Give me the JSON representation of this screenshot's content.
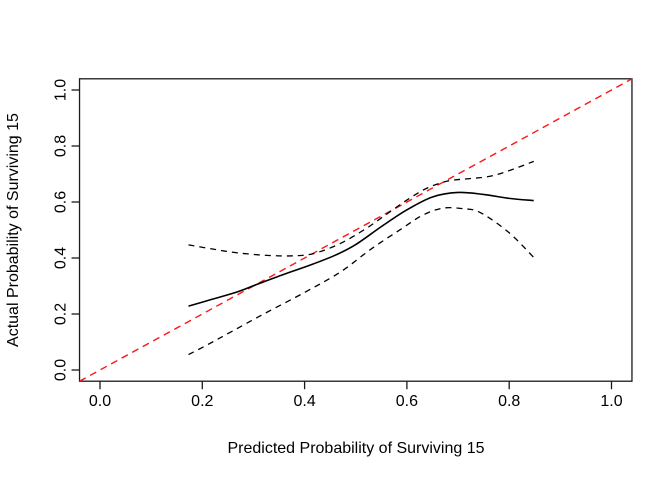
{
  "figure": {
    "background": "#ffffff",
    "text_color": "#000000",
    "frame_color": "#1a1a1a"
  },
  "chart_data": {
    "type": "line",
    "title": "",
    "xlabel": "Predicted Probability of Surviving 15",
    "ylabel": "Actual Probability of Surviving 15",
    "xlim": [
      -0.04,
      1.04
    ],
    "ylim": [
      -0.04,
      1.04
    ],
    "grid": false,
    "legend": "none",
    "xticks": {
      "values": [
        0,
        0.2,
        0.4,
        0.6,
        0.8,
        1.0
      ],
      "labels": [
        "0.0",
        "0.2",
        "0.4",
        "0.6",
        "0.8",
        "1.0"
      ]
    },
    "yticks": {
      "values": [
        0,
        0.2,
        0.4,
        0.6,
        0.8,
        1.0
      ],
      "labels": [
        "0.0",
        "0.2",
        "0.4",
        "0.6",
        "0.8",
        "1.0"
      ]
    },
    "series": [
      {
        "name": "ideal-line",
        "role": "reference-diagonal",
        "color": "#FF1414",
        "dash": [
          7,
          5
        ],
        "width": 1.4,
        "points": [
          [
            -0.04,
            -0.04
          ],
          [
            1.04,
            1.04
          ]
        ]
      },
      {
        "name": "calibration-curve",
        "role": "estimate",
        "color": "#000000",
        "dash": null,
        "width": 1.6,
        "points": [
          [
            0.173,
            0.228
          ],
          [
            0.22,
            0.253
          ],
          [
            0.27,
            0.28
          ],
          [
            0.31,
            0.308
          ],
          [
            0.36,
            0.342
          ],
          [
            0.41,
            0.374
          ],
          [
            0.46,
            0.41
          ],
          [
            0.5,
            0.448
          ],
          [
            0.55,
            0.512
          ],
          [
            0.6,
            0.572
          ],
          [
            0.65,
            0.618
          ],
          [
            0.7,
            0.634
          ],
          [
            0.75,
            0.627
          ],
          [
            0.8,
            0.613
          ],
          [
            0.848,
            0.605
          ]
        ]
      },
      {
        "name": "upper-confidence-band",
        "role": "ci-upper",
        "color": "#000000",
        "dash": [
          6,
          5
        ],
        "width": 1.3,
        "points": [
          [
            0.173,
            0.447
          ],
          [
            0.22,
            0.432
          ],
          [
            0.27,
            0.418
          ],
          [
            0.33,
            0.409
          ],
          [
            0.38,
            0.408
          ],
          [
            0.42,
            0.417
          ],
          [
            0.47,
            0.452
          ],
          [
            0.52,
            0.505
          ],
          [
            0.56,
            0.556
          ],
          [
            0.6,
            0.607
          ],
          [
            0.64,
            0.65
          ],
          [
            0.68,
            0.675
          ],
          [
            0.72,
            0.683
          ],
          [
            0.76,
            0.691
          ],
          [
            0.8,
            0.712
          ],
          [
            0.848,
            0.745
          ]
        ]
      },
      {
        "name": "lower-confidence-band",
        "role": "ci-lower",
        "color": "#000000",
        "dash": [
          6,
          5
        ],
        "width": 1.3,
        "points": [
          [
            0.173,
            0.055
          ],
          [
            0.21,
            0.09
          ],
          [
            0.26,
            0.14
          ],
          [
            0.32,
            0.2
          ],
          [
            0.4,
            0.277
          ],
          [
            0.47,
            0.35
          ],
          [
            0.53,
            0.432
          ],
          [
            0.59,
            0.505
          ],
          [
            0.63,
            0.552
          ],
          [
            0.67,
            0.578
          ],
          [
            0.71,
            0.576
          ],
          [
            0.744,
            0.562
          ],
          [
            0.8,
            0.49
          ],
          [
            0.848,
            0.402
          ]
        ]
      }
    ]
  }
}
